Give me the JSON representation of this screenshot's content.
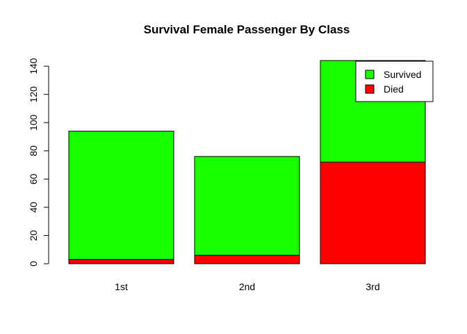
{
  "chart_data": {
    "type": "bar",
    "stacked": true,
    "title": "Survival Female Passenger By Class",
    "xlabel": "",
    "ylabel": "",
    "categories": [
      "1st",
      "2nd",
      "3rd"
    ],
    "series": [
      {
        "name": "Died",
        "values": [
          3,
          6,
          72
        ],
        "color": "#ff0000"
      },
      {
        "name": "Survived",
        "values": [
          91,
          70,
          72
        ],
        "color": "#1aff00"
      }
    ],
    "ylim": [
      0,
      144
    ],
    "yticks": [
      0,
      20,
      40,
      60,
      80,
      100,
      120,
      140
    ],
    "grid": false,
    "legend_placement": "top-right",
    "legend_order": [
      "Survived",
      "Died"
    ]
  }
}
